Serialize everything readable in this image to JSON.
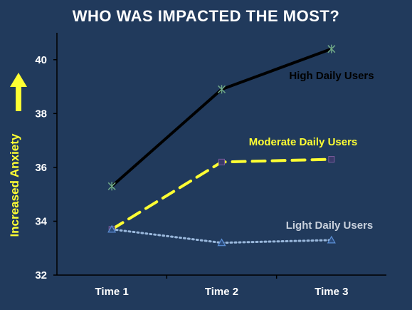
{
  "chart_data": {
    "type": "line",
    "title": "WHO WAS IMPACTED THE MOST?",
    "ylabel": "Increased Anxiety",
    "xlabel": "",
    "categories": [
      "Time 1",
      "Time 2",
      "Time 3"
    ],
    "ylim": [
      32,
      41
    ],
    "yticks": [
      32,
      34,
      36,
      38,
      40
    ],
    "grid": false,
    "legend": "inline labels next to each line",
    "series": [
      {
        "name": "High Daily Users",
        "values": [
          35.3,
          38.9,
          40.4
        ],
        "color": "#000000",
        "style": "solid",
        "marker": "asterisk",
        "label_color": "#000000"
      },
      {
        "name": "Moderate Daily Users",
        "values": [
          33.7,
          36.2,
          36.3
        ],
        "color": "#ffff33",
        "style": "dashed",
        "marker": "square",
        "label_color": "#ffff33"
      },
      {
        "name": "Light Daily Users",
        "values": [
          33.7,
          33.2,
          33.3
        ],
        "color": "#9ab8dc",
        "style": "dotted",
        "marker": "triangle",
        "label_color": "#c8d0dc"
      }
    ],
    "colors": {
      "background": "#213a5c",
      "axis": "#000000",
      "text": "#ffffff",
      "arrow": "#ffff33"
    }
  }
}
